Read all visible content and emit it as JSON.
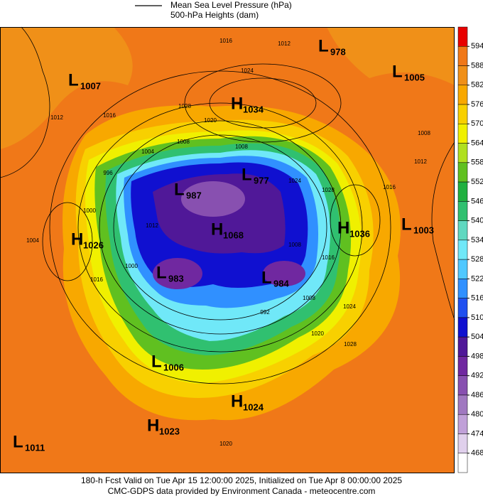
{
  "header": {
    "legend": [
      "Mean Sea Level Pressure (hPa)",
      "500-hPa Heights (dam)"
    ]
  },
  "colorbar": {
    "ticks": [
      594,
      588,
      582,
      576,
      570,
      564,
      558,
      552,
      546,
      540,
      534,
      528,
      522,
      516,
      510,
      504,
      498,
      492,
      486,
      480,
      474,
      468
    ],
    "colors": [
      "#e80000",
      "#f07818",
      "#f09018",
      "#f8a800",
      "#f8d000",
      "#f0f000",
      "#b0e020",
      "#60c020",
      "#20b040",
      "#30c070",
      "#60d8c0",
      "#70e8f8",
      "#50c8ff",
      "#3090ff",
      "#2050f0",
      "#1010d0",
      "#501898",
      "#7028a0",
      "#8850b0",
      "#a078c0",
      "#c0a0d8",
      "#e0d0ec",
      "#ffffff"
    ]
  },
  "centers": [
    {
      "letter": "L",
      "value": 978
    },
    {
      "letter": "L",
      "value": 1007
    },
    {
      "letter": "L",
      "value": 1005
    },
    {
      "letter": "H",
      "value": 1034
    },
    {
      "letter": "L",
      "value": 977
    },
    {
      "letter": "L",
      "value": 987
    },
    {
      "letter": "H",
      "value": 1026
    },
    {
      "letter": "H",
      "value": 1068
    },
    {
      "letter": "H",
      "value": 1036
    },
    {
      "letter": "L",
      "value": 1003
    },
    {
      "letter": "L",
      "value": 983
    },
    {
      "letter": "L",
      "value": 984
    },
    {
      "letter": "L",
      "value": 1006
    },
    {
      "letter": "H",
      "value": 1024
    },
    {
      "letter": "H",
      "value": 1023
    },
    {
      "letter": "L",
      "value": 1011
    }
  ],
  "isobar_labels": [
    "1012",
    "1016",
    "1024",
    "1020",
    "1028",
    "1016",
    "1012",
    "1004",
    "1008",
    "1008",
    "1024",
    "1028",
    "1016",
    "1012",
    "1008",
    "996",
    "1012",
    "1000",
    "1004",
    "1000",
    "1008",
    "1016",
    "1016",
    "992",
    "1008",
    "1020",
    "1024",
    "1028",
    "1020"
  ],
  "footer": [
    "180-h Fcst Valid on Tue Apr 15 12:00:00 2025, Initialized on Tue Apr  8 00:00:00 2025",
    "CMC-GDPS data provided by Environment Canada - meteocentre.com"
  ]
}
